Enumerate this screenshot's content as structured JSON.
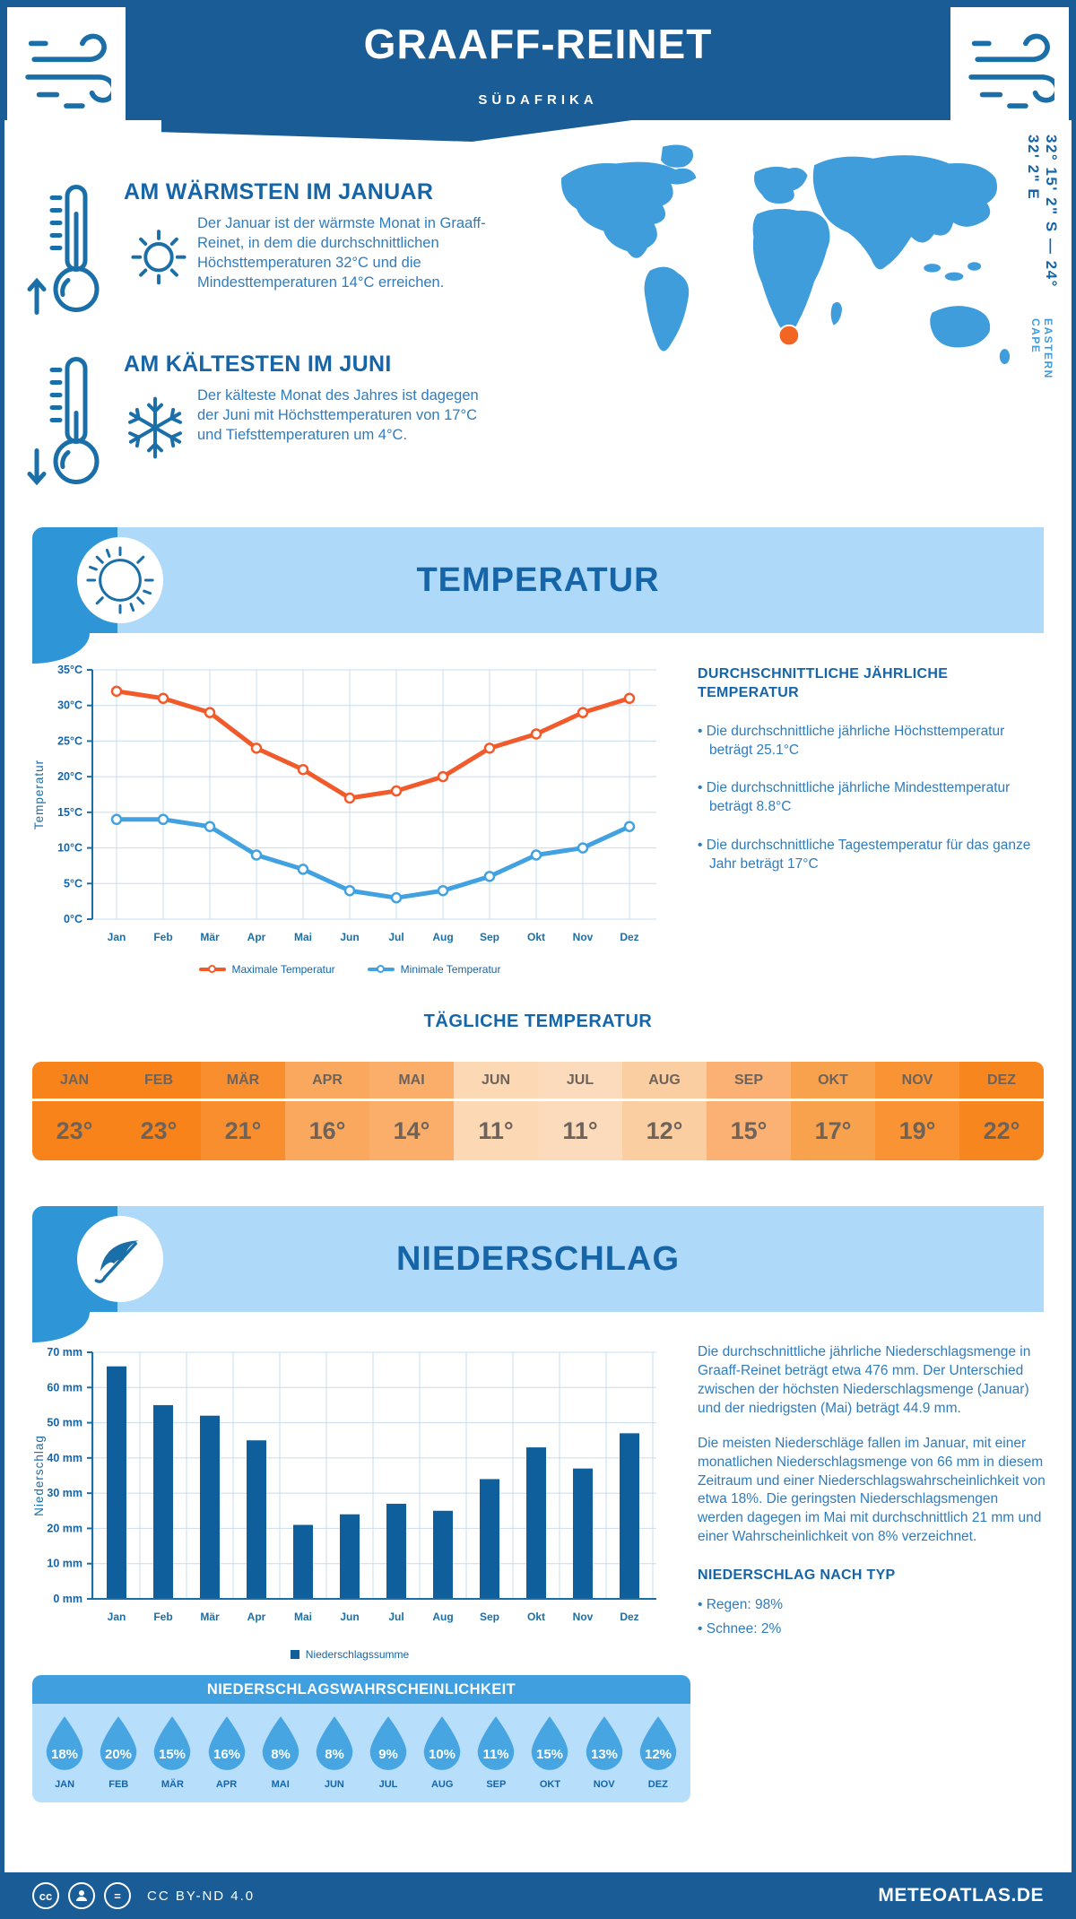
{
  "header": {
    "title": "GRAAFF-REINET",
    "subtitle": "SÜDAFRIKA"
  },
  "warmest": {
    "heading": "AM WÄRMSTEN IM JANUAR",
    "text": "Der Januar ist der wärmste Monat in Graaff-Reinet, in dem die durchschnittlichen Höchsttemperaturen 32°C und die Mindesttemperaturen 14°C erreichen."
  },
  "coldest": {
    "heading": "AM KÄLTESTEN IM JUNI",
    "text": "Der kälteste Monat des Jahres ist dagegen der Juni mit Höchsttemperaturen von 17°C und Tiefsttemperaturen um 4°C."
  },
  "map": {
    "coordinates": "32° 15' 2\" S — 24° 32' 2\" E",
    "region": "EASTERN CAPE",
    "marker_color": "#F26522",
    "land_color": "#3F9DDB"
  },
  "temperature_section": {
    "banner": "TEMPERATUR",
    "right_heading": "DURCHSCHNITTLICHE JÄHRLICHE TEMPERATUR",
    "bullets": [
      "• Die durchschnittliche jährliche Höchsttemperatur beträgt 25.1°C",
      "• Die durchschnittliche jährliche Mindesttemperatur beträgt 8.8°C",
      "• Die durchschnittliche Tagestemperatur für das ganze Jahr beträgt 17°C"
    ],
    "daily_heading": "TÄGLICHE TEMPERATUR"
  },
  "chart_data": [
    {
      "type": "line",
      "categories": [
        "Jan",
        "Feb",
        "Mär",
        "Apr",
        "Mai",
        "Jun",
        "Jul",
        "Aug",
        "Sep",
        "Okt",
        "Nov",
        "Dez"
      ],
      "series": [
        {
          "name": "Maximale Temperatur",
          "color": "#F15B2B",
          "values": [
            32,
            31,
            29,
            24,
            21,
            17,
            18,
            20,
            24,
            26,
            29,
            31
          ]
        },
        {
          "name": "Minimale Temperatur",
          "color": "#41A1E1",
          "values": [
            14,
            14,
            13,
            9,
            7,
            4,
            3,
            4,
            6,
            9,
            10,
            13
          ]
        }
      ],
      "ylabel": "Temperatur",
      "ylim": [
        0,
        35
      ],
      "tick_step": 5,
      "unit": "°C",
      "grid": true,
      "legend_position": "bottom"
    },
    {
      "type": "bar",
      "categories": [
        "Jan",
        "Feb",
        "Mär",
        "Apr",
        "Mai",
        "Jun",
        "Jul",
        "Aug",
        "Sep",
        "Okt",
        "Nov",
        "Dez"
      ],
      "values": [
        66,
        55,
        52,
        45,
        21,
        24,
        27,
        25,
        34,
        43,
        37,
        47
      ],
      "legend": "Niederschlagssumme",
      "color": "#0E5F9C",
      "ylabel": "Niederschlag",
      "ylim": [
        0,
        70
      ],
      "tick_step": 10,
      "unit": " mm",
      "grid": true,
      "legend_position": "bottom"
    }
  ],
  "daily_table": {
    "months": [
      {
        "label": "JAN",
        "value": "23°",
        "bg": "#F8831B"
      },
      {
        "label": "FEB",
        "value": "23°",
        "bg": "#F8831B"
      },
      {
        "label": "MÄR",
        "value": "21°",
        "bg": "#F98E2F"
      },
      {
        "label": "APR",
        "value": "16°",
        "bg": "#FAA85E"
      },
      {
        "label": "MAI",
        "value": "14°",
        "bg": "#FAAE69"
      },
      {
        "label": "JUN",
        "value": "11°",
        "bg": "#FCD8B5"
      },
      {
        "label": "JUL",
        "value": "11°",
        "bg": "#FCDBBC"
      },
      {
        "label": "AUG",
        "value": "12°",
        "bg": "#FBCEA2"
      },
      {
        "label": "SEP",
        "value": "15°",
        "bg": "#FAB173"
      },
      {
        "label": "OKT",
        "value": "17°",
        "bg": "#F9A24D"
      },
      {
        "label": "NOV",
        "value": "19°",
        "bg": "#F99333"
      },
      {
        "label": "DEZ",
        "value": "22°",
        "bg": "#F8861E"
      }
    ]
  },
  "precipitation_section": {
    "banner": "NIEDERSCHLAG",
    "para1": "Die durchschnittliche jährliche Niederschlagsmenge in Graaff-Reinet beträgt etwa 476 mm. Der Unterschied zwischen der höchsten Niederschlagsmenge (Januar) und der niedrigsten (Mai) beträgt 44.9 mm.",
    "para2": "Die meisten Niederschläge fallen im Januar, mit einer monatlichen Niederschlagsmenge von 66 mm in diesem Zeitraum und einer Niederschlagswahrscheinlichkeit von etwa 18%. Die geringsten Niederschlagsmengen werden dagegen im Mai mit durchschnittlich 21 mm und einer Wahrscheinlichkeit von 8% verzeichnet.",
    "type_heading": "NIEDERSCHLAG NACH TYP",
    "type_bullets": [
      "• Regen: 98%",
      "• Schnee: 2%"
    ]
  },
  "probability": {
    "heading": "NIEDERSCHLAGSWAHRSCHEINLICHKEIT",
    "drop_color": "#47A5E2",
    "items": [
      {
        "month": "JAN",
        "value": "18%"
      },
      {
        "month": "FEB",
        "value": "20%"
      },
      {
        "month": "MÄR",
        "value": "15%"
      },
      {
        "month": "APR",
        "value": "16%"
      },
      {
        "month": "MAI",
        "value": "8%"
      },
      {
        "month": "JUN",
        "value": "8%"
      },
      {
        "month": "JUL",
        "value": "9%"
      },
      {
        "month": "AUG",
        "value": "10%"
      },
      {
        "month": "SEP",
        "value": "11%"
      },
      {
        "month": "OKT",
        "value": "15%"
      },
      {
        "month": "NOV",
        "value": "13%"
      },
      {
        "month": "DEZ",
        "value": "12%"
      }
    ]
  },
  "footer": {
    "license": "CC BY-ND 4.0",
    "site": "METEOATLAS.DE"
  }
}
